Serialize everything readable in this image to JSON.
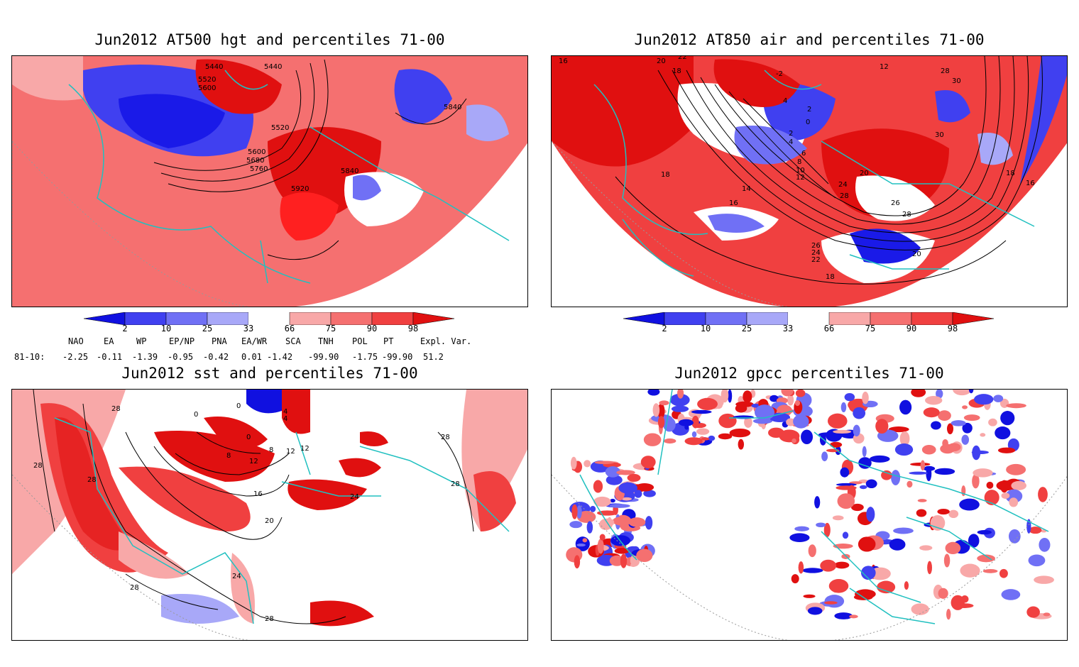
{
  "panels": [
    {
      "id": "p1",
      "title": "Jun2012 AT500 hgt and percentiles 71-00",
      "contour_labels": [
        "5440",
        "5520",
        "5600",
        "5440",
        "5520",
        "5600",
        "5680",
        "5760",
        "5840",
        "5840",
        "5920"
      ]
    },
    {
      "id": "p2",
      "title": "Jun2012 AT850 air and percentiles 71-00",
      "contour_labels": [
        "16",
        "20",
        "22",
        "18",
        "-2",
        "12",
        "28",
        "30",
        "4",
        "2",
        "0",
        "2",
        "4",
        "6",
        "8",
        "10",
        "12",
        "18",
        "14",
        "16",
        "20",
        "24",
        "28",
        "26",
        "28",
        "30",
        "18",
        "16",
        "26",
        "24",
        "22",
        "20",
        "18"
      ]
    },
    {
      "id": "p3",
      "title": "Jun2012 sst and percentiles 71-00",
      "contour_labels": [
        "28",
        "0",
        "0",
        "4",
        "4",
        "8",
        "12",
        "8",
        "12",
        "0",
        "12",
        "16",
        "20",
        "28",
        "28",
        "24",
        "28",
        "28",
        "24",
        "28",
        "28"
      ]
    },
    {
      "id": "p4",
      "title": "Jun2012 gpcc percentiles 71-00",
      "contour_labels": []
    }
  ],
  "colorbar": {
    "labels": [
      "2",
      "10",
      "25",
      "33",
      "66",
      "75",
      "90",
      "98"
    ],
    "colors": [
      "#1010e0",
      "#4040f0",
      "#7070f5",
      "#a8a8f8",
      "#f8a8a8",
      "#f57070",
      "#f04040",
      "#e01010"
    ]
  },
  "teleconnections": {
    "headers": [
      "NAO",
      "EA",
      "WP",
      "EP/NP",
      "PNA",
      "EA/WR",
      "SCA",
      "TNH",
      "POL",
      "PT",
      "Expl. Var."
    ],
    "period": "81-10:",
    "values": [
      "-2.25",
      "-0.11",
      "-1.39",
      "-0.95",
      "-0.42",
      "0.01",
      "-1.42",
      "-99.90",
      "-1.75",
      "-99.90",
      "51.2"
    ]
  },
  "colors": {
    "coast": "#20c0c0",
    "positive": "#f04040",
    "negative": "#4040f0"
  }
}
